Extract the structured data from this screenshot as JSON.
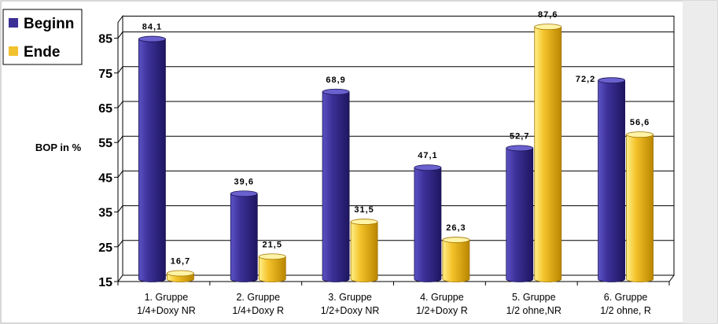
{
  "chart_data": {
    "type": "bar",
    "title": "",
    "xlabel": "",
    "ylabel": "BOP in %",
    "categories": [
      [
        "1. Gruppe",
        "1/4+Doxy NR"
      ],
      [
        "2. Gruppe",
        "1/4+Doxy R"
      ],
      [
        "3. Gruppe",
        "1/2+Doxy NR"
      ],
      [
        "4. Gruppe",
        "1/2+Doxy  R"
      ],
      [
        "5. Gruppe",
        "1/2 ohne,NR"
      ],
      [
        "6. Gruppe",
        "1/2 ohne,  R"
      ]
    ],
    "series": [
      {
        "name": "Beginn",
        "color": "#3b2f96",
        "values": [
          84.1,
          39.6,
          68.9,
          47.1,
          52.7,
          72.2
        ],
        "labels": [
          "84,1",
          "39,6",
          "68,9",
          "47,1",
          "52,7",
          "72,2"
        ]
      },
      {
        "name": "Ende",
        "color": "#f2c12e",
        "values": [
          16.7,
          21.5,
          31.5,
          26.3,
          87.6,
          56.6
        ],
        "labels": [
          "16,7",
          "21,5",
          "31,5",
          "26,3",
          "87,6",
          "56,6"
        ]
      }
    ],
    "yticks": [
      "15",
      "25",
      "35",
      "45",
      "55",
      "65",
      "75",
      "85"
    ],
    "ylim": [
      15,
      90
    ],
    "grid": true,
    "legend": "top-left",
    "style": "3d-cylinder"
  }
}
